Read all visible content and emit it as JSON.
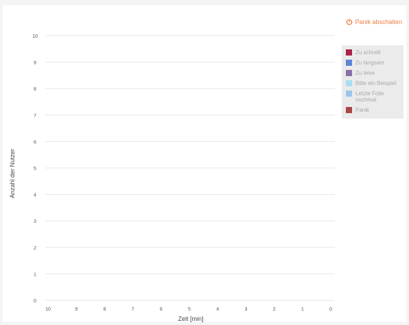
{
  "panic_button": {
    "label": "Panik abschalten",
    "icon": "power-icon",
    "color": "#ee7e43"
  },
  "chart_data": {
    "type": "line",
    "xlabel": "Zeit [min]",
    "ylabel": "Anzahl der Nutzer",
    "x_ticks": [
      "10",
      "9",
      "8",
      "7",
      "6",
      "5",
      "4",
      "3",
      "2",
      "1",
      "0"
    ],
    "y_ticks": [
      "0",
      "1",
      "2",
      "3",
      "4",
      "5",
      "6",
      "7",
      "8",
      "9",
      "10"
    ],
    "xlim": [
      10,
      0
    ],
    "ylim": [
      0,
      10
    ],
    "grid": true,
    "legend_position": "right",
    "series": [
      {
        "name": "Zu schnell",
        "color": "#a8244a",
        "values": []
      },
      {
        "name": "Zu langsam",
        "color": "#5b86d6",
        "values": []
      },
      {
        "name": "Zu leise",
        "color": "#8a6fa8",
        "values": []
      },
      {
        "name": "Bitte ein Beispiel",
        "color": "#a9ddf2",
        "values": []
      },
      {
        "name": "Letzte Folie nochmal",
        "color": "#9cc6ea",
        "values": []
      },
      {
        "name": "Panik",
        "color": "#a8464a",
        "values": []
      }
    ]
  }
}
